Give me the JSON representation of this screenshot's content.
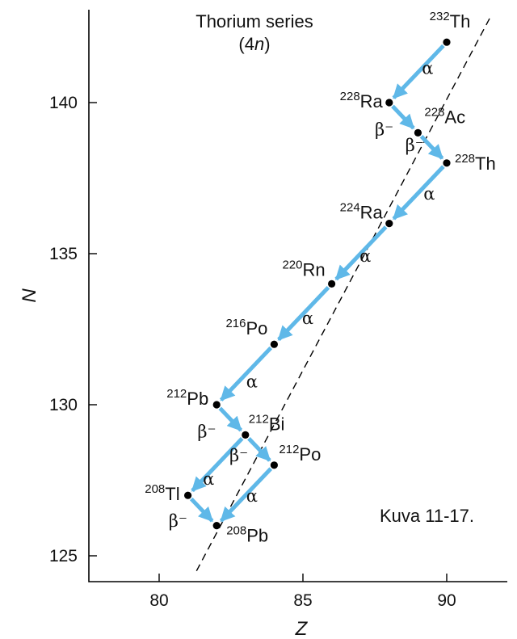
{
  "title": {
    "line1": "Thorium series",
    "line2_prefix": "(4",
    "line2_var": "n",
    "line2_suffix": ")"
  },
  "caption": "Kuva 11-17.",
  "chart_data": {
    "type": "scatter",
    "xlabel": "Z",
    "ylabel": "N",
    "xlim": [
      77.5,
      92.5
    ],
    "ylim": [
      124,
      143
    ],
    "xticks": [
      80,
      85,
      90
    ],
    "yticks": [
      125,
      130,
      135,
      140
    ],
    "nuclides": [
      {
        "id": "th232",
        "mass": "232",
        "symbol": "Th",
        "z": 90,
        "n": 142
      },
      {
        "id": "ra228",
        "mass": "228",
        "symbol": "Ra",
        "z": 88,
        "n": 140
      },
      {
        "id": "ac228",
        "mass": "228",
        "symbol": "Ac",
        "z": 89,
        "n": 139
      },
      {
        "id": "th228",
        "mass": "228",
        "symbol": "Th",
        "z": 90,
        "n": 138
      },
      {
        "id": "ra224",
        "mass": "224",
        "symbol": "Ra",
        "z": 88,
        "n": 136
      },
      {
        "id": "rn220",
        "mass": "220",
        "symbol": "Rn",
        "z": 86,
        "n": 134
      },
      {
        "id": "po216",
        "mass": "216",
        "symbol": "Po",
        "z": 84,
        "n": 132
      },
      {
        "id": "pb212",
        "mass": "212",
        "symbol": "Pb",
        "z": 82,
        "n": 130
      },
      {
        "id": "bi212",
        "mass": "212",
        "symbol": "Bi",
        "z": 83,
        "n": 129
      },
      {
        "id": "po212",
        "mass": "212",
        "symbol": "Po",
        "z": 84,
        "n": 128
      },
      {
        "id": "tl208",
        "mass": "208",
        "symbol": "Tl",
        "z": 81,
        "n": 127
      },
      {
        "id": "pb208",
        "mass": "208",
        "symbol": "Pb",
        "z": 82,
        "n": 126
      }
    ],
    "decays": [
      {
        "from": "th232",
        "to": "ra228",
        "label": "α"
      },
      {
        "from": "ra228",
        "to": "ac228",
        "label": "β⁻"
      },
      {
        "from": "ac228",
        "to": "th228",
        "label": "β⁻"
      },
      {
        "from": "th228",
        "to": "ra224",
        "label": "α"
      },
      {
        "from": "ra224",
        "to": "rn220",
        "label": "α"
      },
      {
        "from": "rn220",
        "to": "po216",
        "label": "α"
      },
      {
        "from": "po216",
        "to": "pb212",
        "label": "α"
      },
      {
        "from": "pb212",
        "to": "bi212",
        "label": "β⁻"
      },
      {
        "from": "bi212",
        "to": "po212",
        "label": "β⁻"
      },
      {
        "from": "bi212",
        "to": "tl208",
        "label": "α"
      },
      {
        "from": "po212",
        "to": "pb208",
        "label": "α"
      },
      {
        "from": "tl208",
        "to": "pb208",
        "label": "β⁻"
      }
    ],
    "stability_line": {
      "z1": 81.3,
      "n1": 124.5,
      "z2": 91.5,
      "n2": 142.8
    }
  }
}
